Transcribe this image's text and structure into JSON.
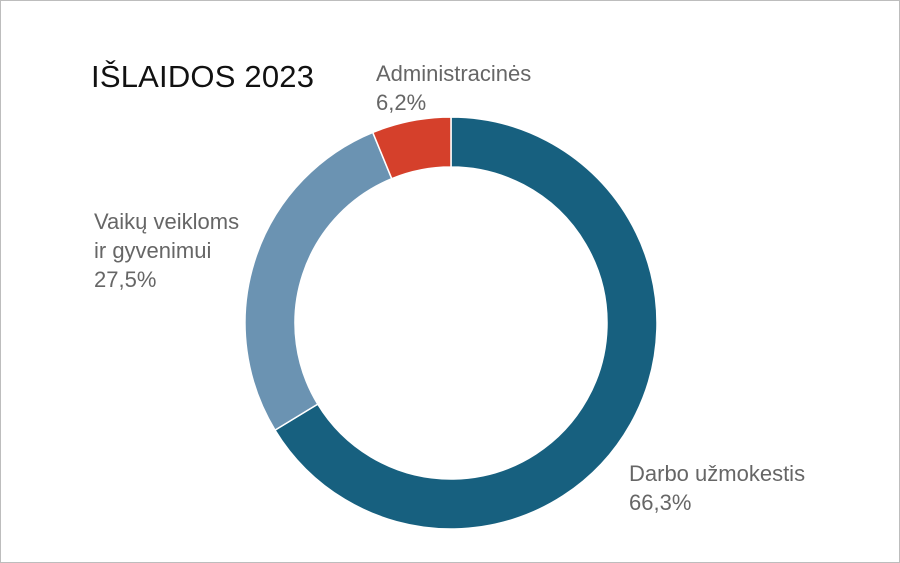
{
  "chart_data": {
    "type": "pie",
    "title": "IŠLAIDOS 2023",
    "series": [
      {
        "name": "Darbo užmokestis",
        "label_lines": [
          "Darbo užmokestis"
        ],
        "value": 66.3,
        "value_label": "66,3%",
        "color": "#17607f"
      },
      {
        "name": "Vaikų veikloms ir gyvenimui",
        "label_lines": [
          "Vaikų veikloms",
          "ir gyvenimui"
        ],
        "value": 27.5,
        "value_label": "27,5%",
        "color": "#6b93b2"
      },
      {
        "name": "Administracinės",
        "label_lines": [
          "Administracinės"
        ],
        "value": 6.2,
        "value_label": "6,2%",
        "color": "#d5402b"
      }
    ],
    "legend": "none",
    "donut": true
  }
}
